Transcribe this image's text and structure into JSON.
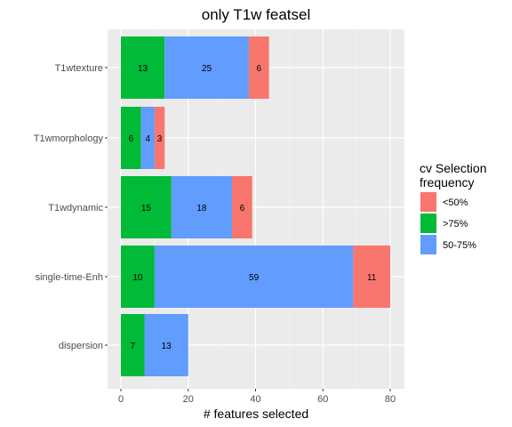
{
  "chart_data": {
    "type": "bar",
    "orientation": "horizontal",
    "stacked": true,
    "title": "only T1w featsel",
    "xlabel": "# features selected",
    "ylabel": "",
    "xlim": [
      0,
      80
    ],
    "xticks": [
      0,
      20,
      40,
      60,
      80
    ],
    "grid": true,
    "legend_position": "right",
    "legend_title": "cv Selection\nfrequency",
    "categories": [
      "T1wtexture",
      "T1wmorphology",
      "T1wdynamic",
      "single-time-Enh",
      "dispersion"
    ],
    "series": [
      {
        "name": ">75%",
        "color": "#00BA38",
        "values": [
          13,
          6,
          15,
          10,
          7
        ]
      },
      {
        "name": "50-75%",
        "color": "#619CFF",
        "values": [
          25,
          4,
          18,
          59,
          13
        ]
      },
      {
        "name": "<50%",
        "color": "#F8766D",
        "values": [
          6,
          3,
          6,
          11,
          0
        ]
      }
    ],
    "legend_order": [
      "<50%",
      ">75%",
      "50-75%"
    ]
  }
}
